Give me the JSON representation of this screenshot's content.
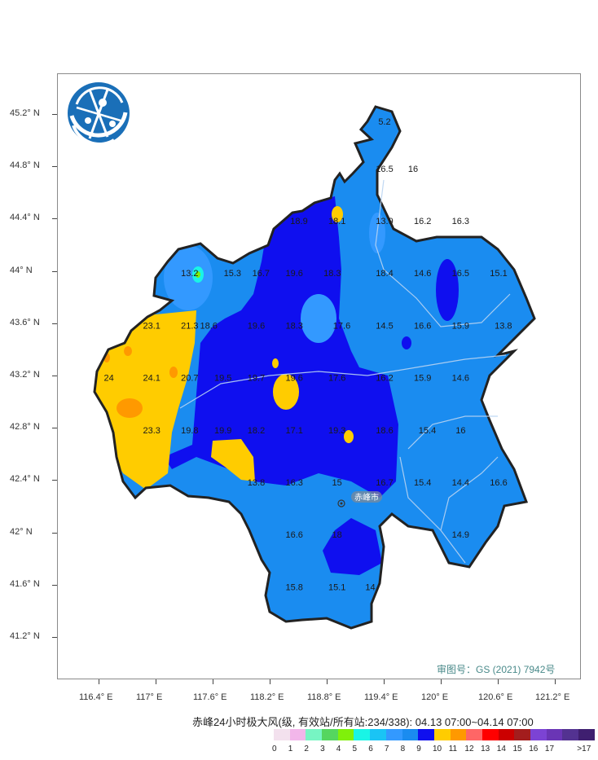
{
  "map": {
    "title": "赤峰24小时极大风(级, 有效站/所有站:234/338): 04.13 07:00~04.14 07:00",
    "approval_number": "审图号：GS (2021) 7942号",
    "city_label": "赤峰市",
    "lat_labels": [
      "45.2° N",
      "44.8° N",
      "44.4° N",
      "44° N",
      "43.6° N",
      "43.2° N",
      "42.8° N",
      "42.4° N",
      "42° N",
      "41.6° N",
      "41.2° N"
    ],
    "lon_labels": [
      "116.4° E",
      "117° E",
      "117.6° E",
      "118.2° E",
      "118.8° E",
      "119.4° E",
      "120° E",
      "120.6° E",
      "121.2° E"
    ],
    "legend": [
      {
        "label": "0",
        "color": "#f3e1ee"
      },
      {
        "label": "1",
        "color": "#f2b6ea"
      },
      {
        "label": "2",
        "color": "#77f5c3"
      },
      {
        "label": "3",
        "color": "#55d65f"
      },
      {
        "label": "4",
        "color": "#80f00a"
      },
      {
        "label": "5",
        "color": "#19f5e6"
      },
      {
        "label": "6",
        "color": "#1ac4f5"
      },
      {
        "label": "7",
        "color": "#3399ff"
      },
      {
        "label": "8",
        "color": "#1a8cf0"
      },
      {
        "label": "9",
        "color": "#0f0fef"
      },
      {
        "label": "10",
        "color": "#ffcc00"
      },
      {
        "label": "11",
        "color": "#ff9900"
      },
      {
        "label": "12",
        "color": "#ff6666"
      },
      {
        "label": "13",
        "color": "#ff0000"
      },
      {
        "label": "14",
        "color": "#cc0000"
      },
      {
        "label": "15",
        "color": "#a31d1d"
      },
      {
        "label": "16",
        "color": "#7c43d4"
      },
      {
        "label": "17",
        "color": "#6a35b5"
      },
      {
        "label": "",
        "color": "#533291"
      },
      {
        "label": ">17",
        "color": "#3f1f70"
      }
    ],
    "stations": [
      {
        "v": "5.2",
        "lon": 119.4,
        "lat": 45.15
      },
      {
        "v": "16.5",
        "lon": 119.4,
        "lat": 44.79
      },
      {
        "v": "16",
        "lon": 119.7,
        "lat": 44.79
      },
      {
        "v": "18.9",
        "lon": 118.5,
        "lat": 44.39
      },
      {
        "v": "18.1",
        "lon": 118.9,
        "lat": 44.39
      },
      {
        "v": "13.9",
        "lon": 119.4,
        "lat": 44.39
      },
      {
        "v": "16.2",
        "lon": 119.8,
        "lat": 44.39
      },
      {
        "v": "16.3",
        "lon": 120.2,
        "lat": 44.39
      },
      {
        "v": "13.2",
        "lon": 117.35,
        "lat": 43.99
      },
      {
        "v": "15.3",
        "lon": 117.8,
        "lat": 43.99
      },
      {
        "v": "16.7",
        "lon": 118.1,
        "lat": 43.99
      },
      {
        "v": "19.6",
        "lon": 118.45,
        "lat": 43.99
      },
      {
        "v": "18.3",
        "lon": 118.85,
        "lat": 43.99
      },
      {
        "v": "18.4",
        "lon": 119.4,
        "lat": 43.99
      },
      {
        "v": "14.6",
        "lon": 119.8,
        "lat": 43.99
      },
      {
        "v": "16.5",
        "lon": 120.2,
        "lat": 43.99
      },
      {
        "v": "15.1",
        "lon": 120.6,
        "lat": 43.99
      },
      {
        "v": "23.1",
        "lon": 116.95,
        "lat": 43.59
      },
      {
        "v": "21.3",
        "lon": 117.35,
        "lat": 43.59
      },
      {
        "v": "18.6",
        "lon": 117.55,
        "lat": 43.59
      },
      {
        "v": "19.6",
        "lon": 118.05,
        "lat": 43.59
      },
      {
        "v": "18.3",
        "lon": 118.45,
        "lat": 43.59
      },
      {
        "v": "17.6",
        "lon": 118.95,
        "lat": 43.59
      },
      {
        "v": "14.5",
        "lon": 119.4,
        "lat": 43.59
      },
      {
        "v": "16.6",
        "lon": 119.8,
        "lat": 43.59
      },
      {
        "v": "15.9",
        "lon": 120.2,
        "lat": 43.59
      },
      {
        "v": "13.8",
        "lon": 120.65,
        "lat": 43.59
      },
      {
        "v": "24",
        "lon": 116.5,
        "lat": 43.19
      },
      {
        "v": "24.1",
        "lon": 116.95,
        "lat": 43.19
      },
      {
        "v": "20.7",
        "lon": 117.35,
        "lat": 43.19
      },
      {
        "v": "19.5",
        "lon": 117.7,
        "lat": 43.19
      },
      {
        "v": "19.7",
        "lon": 118.05,
        "lat": 43.19
      },
      {
        "v": "19.6",
        "lon": 118.45,
        "lat": 43.19
      },
      {
        "v": "17.6",
        "lon": 118.9,
        "lat": 43.19
      },
      {
        "v": "16.2",
        "lon": 119.4,
        "lat": 43.19
      },
      {
        "v": "15.9",
        "lon": 119.8,
        "lat": 43.19
      },
      {
        "v": "14.6",
        "lon": 120.2,
        "lat": 43.19
      },
      {
        "v": "23.3",
        "lon": 116.95,
        "lat": 42.79
      },
      {
        "v": "19.8",
        "lon": 117.35,
        "lat": 42.79
      },
      {
        "v": "19.9",
        "lon": 117.7,
        "lat": 42.79
      },
      {
        "v": "18.2",
        "lon": 118.05,
        "lat": 42.79
      },
      {
        "v": "17.1",
        "lon": 118.45,
        "lat": 42.79
      },
      {
        "v": "19.3",
        "lon": 118.9,
        "lat": 42.79
      },
      {
        "v": "18.6",
        "lon": 119.4,
        "lat": 42.79
      },
      {
        "v": "15.4",
        "lon": 119.85,
        "lat": 42.79
      },
      {
        "v": "16",
        "lon": 120.2,
        "lat": 42.79
      },
      {
        "v": "13.8",
        "lon": 118.05,
        "lat": 42.39
      },
      {
        "v": "16.3",
        "lon": 118.45,
        "lat": 42.39
      },
      {
        "v": "15",
        "lon": 118.9,
        "lat": 42.39
      },
      {
        "v": "16.7",
        "lon": 119.4,
        "lat": 42.39
      },
      {
        "v": "15.4",
        "lon": 119.8,
        "lat": 42.39
      },
      {
        "v": "14.4",
        "lon": 120.2,
        "lat": 42.39
      },
      {
        "v": "16.6",
        "lon": 120.6,
        "lat": 42.39
      },
      {
        "v": "16.6",
        "lon": 118.45,
        "lat": 41.99
      },
      {
        "v": "18",
        "lon": 118.9,
        "lat": 41.99
      },
      {
        "v": "14.9",
        "lon": 120.2,
        "lat": 41.99
      },
      {
        "v": "15.8",
        "lon": 118.45,
        "lat": 41.59
      },
      {
        "v": "15.1",
        "lon": 118.9,
        "lat": 41.59
      },
      {
        "v": "14",
        "lon": 119.25,
        "lat": 41.59
      }
    ]
  }
}
